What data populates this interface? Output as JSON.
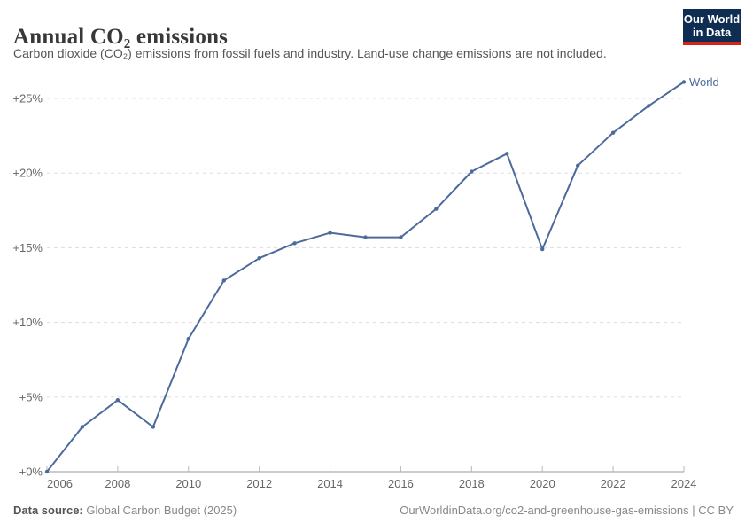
{
  "logo": {
    "line1": "Our World",
    "line2": "in Data"
  },
  "footer": {
    "datasource_label": "Data source:",
    "datasource_value": "Global Carbon Budget (2025)",
    "citation": "OurWorldinData.org/co2-and-greenhouse-gas-emissions | CC BY"
  },
  "colors": {
    "series_blue": "#4c6a9c",
    "logo_navy": "#0f2d52",
    "logo_red": "#d1261a",
    "grid_gray": "#dddddd",
    "axis_gray": "#999999",
    "label_gray": "#666666"
  },
  "chart_data": {
    "type": "line",
    "title": "Annual CO₂ emissions",
    "subtitle": "Carbon dioxide (CO₂) emissions from fossil fuels and industry. Land-use change emissions are not included.",
    "x": [
      2006,
      2007,
      2008,
      2009,
      2010,
      2011,
      2012,
      2013,
      2014,
      2015,
      2016,
      2017,
      2018,
      2019,
      2020,
      2021,
      2022,
      2023,
      2024
    ],
    "series": [
      {
        "name": "World",
        "color": "#4c6a9c",
        "values": [
          0,
          3.0,
          4.8,
          3.0,
          8.9,
          12.8,
          14.3,
          15.3,
          16.0,
          15.7,
          15.7,
          17.6,
          20.1,
          21.3,
          14.9,
          20.5,
          22.7,
          24.5,
          26.1
        ]
      }
    ],
    "x_ticks": [
      2006,
      2008,
      2010,
      2012,
      2014,
      2016,
      2018,
      2020,
      2022,
      2024
    ],
    "x_tick_labels": [
      "2006",
      "2008",
      "2010",
      "2012",
      "2014",
      "2016",
      "2018",
      "2020",
      "2022",
      "2024"
    ],
    "y_ticks": [
      0,
      5,
      10,
      15,
      20,
      25
    ],
    "y_tick_labels": [
      "+0%",
      "+5%",
      "+10%",
      "+15%",
      "+20%",
      "+25%"
    ],
    "xlim": [
      2006,
      2024
    ],
    "ylim": [
      0,
      26.5
    ],
    "grid": "dashed-horizontal",
    "legend": "series-end-label"
  }
}
